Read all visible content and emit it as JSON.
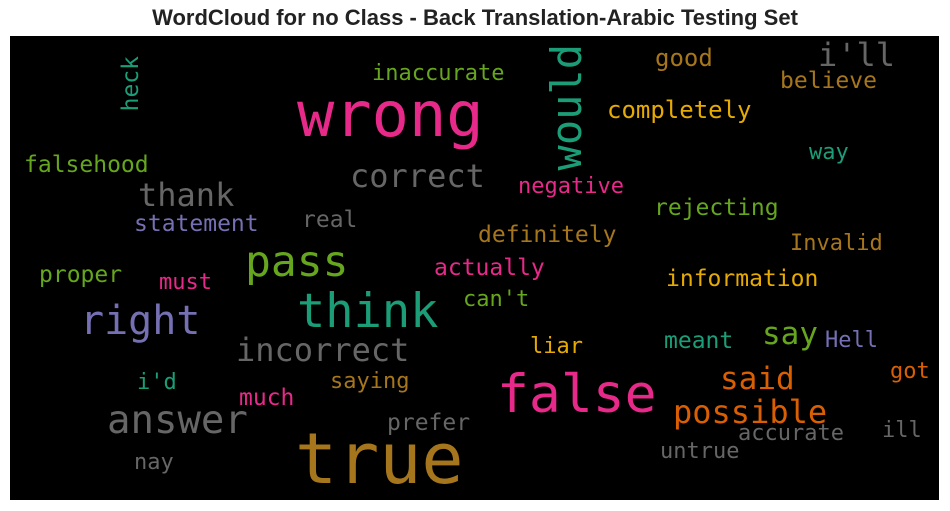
{
  "chart_data": {
    "type": "wordcloud",
    "title": "WordCloud for no Class - Back Translation-Arabic Testing Set",
    "background": "#000000",
    "words": [
      {
        "text": "true",
        "color": "#a6761d"
      },
      {
        "text": "wrong",
        "color": "#e7298a"
      },
      {
        "text": "false",
        "color": "#e7298a"
      },
      {
        "text": "think",
        "color": "#1b9e77"
      },
      {
        "text": "right",
        "color": "#7570b3"
      },
      {
        "text": "pass",
        "color": "#66a61e"
      },
      {
        "text": "answer",
        "color": "#666666"
      },
      {
        "text": "would",
        "color": "#1b9e77"
      },
      {
        "text": "incorrect",
        "color": "#666666"
      },
      {
        "text": "possible",
        "color": "#d95f02"
      },
      {
        "text": "i'll",
        "color": "#666666"
      },
      {
        "text": "correct",
        "color": "#666666"
      },
      {
        "text": "thank",
        "color": "#666666"
      },
      {
        "text": "said",
        "color": "#d95f02"
      },
      {
        "text": "say",
        "color": "#66a61e"
      },
      {
        "text": "completely",
        "color": "#e6ab02"
      },
      {
        "text": "inaccurate",
        "color": "#66a61e"
      },
      {
        "text": "good",
        "color": "#a6761d"
      },
      {
        "text": "believe",
        "color": "#a6761d"
      },
      {
        "text": "heck",
        "color": "#1b9e77"
      },
      {
        "text": "falsehood",
        "color": "#66a61e"
      },
      {
        "text": "way",
        "color": "#1b9e77"
      },
      {
        "text": "negative",
        "color": "#e7298a"
      },
      {
        "text": "rejecting",
        "color": "#66a61e"
      },
      {
        "text": "statement",
        "color": "#7570b3"
      },
      {
        "text": "real",
        "color": "#666666"
      },
      {
        "text": "definitely",
        "color": "#a6761d"
      },
      {
        "text": "Invalid",
        "color": "#a6761d"
      },
      {
        "text": "proper",
        "color": "#66a61e"
      },
      {
        "text": "must",
        "color": "#e7298a"
      },
      {
        "text": "actually",
        "color": "#e7298a"
      },
      {
        "text": "information",
        "color": "#e6ab02"
      },
      {
        "text": "can't",
        "color": "#66a61e"
      },
      {
        "text": "meant",
        "color": "#1b9e77"
      },
      {
        "text": "Hell",
        "color": "#7570b3"
      },
      {
        "text": "liar",
        "color": "#e6ab02"
      },
      {
        "text": "i'd",
        "color": "#1b9e77"
      },
      {
        "text": "saying",
        "color": "#a6761d"
      },
      {
        "text": "got",
        "color": "#d95f02"
      },
      {
        "text": "much",
        "color": "#e7298a"
      },
      {
        "text": "prefer",
        "color": "#666666"
      },
      {
        "text": "accurate",
        "color": "#666666"
      },
      {
        "text": "ill",
        "color": "#666666"
      },
      {
        "text": "nay",
        "color": "#666666"
      },
      {
        "text": "untrue",
        "color": "#666666"
      }
    ]
  }
}
